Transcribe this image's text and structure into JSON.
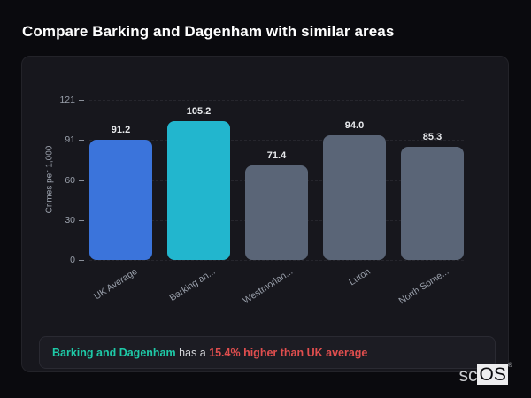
{
  "page": {
    "title": "Compare Barking and Dagenham with similar areas"
  },
  "chart_data": {
    "type": "bar",
    "categories": [
      "UK Average",
      "Barking an...",
      "Westmorlan...",
      "Luton",
      "North Some..."
    ],
    "values": [
      91.2,
      105.2,
      71.4,
      94.0,
      85.3
    ],
    "value_labels": [
      "91.2",
      "105.2",
      "71.4",
      "94.0",
      "85.3"
    ],
    "bar_colors": [
      "#3B74DB",
      "#22B6CE",
      "#5A6577",
      "#5A6577",
      "#5A6577"
    ],
    "title": "",
    "xlabel": "",
    "ylabel": "Crimes per 1,000",
    "yticks": [
      0,
      30,
      60,
      91,
      121
    ],
    "ytick_labels": [
      "0",
      "30",
      "60",
      "91",
      "121"
    ],
    "ylim": [
      0,
      121
    ],
    "grid": "horizontal-dashed",
    "legend": "none"
  },
  "note": {
    "highlight": "Barking and Dagenham",
    "middle": " has a ",
    "stat": "15.4% higher than UK average",
    "highlight_color": "#1EC9A7",
    "stat_color": "#E04E4E"
  },
  "watermark": {
    "prefix": "sc",
    "suffix": "OS",
    "reg": "®"
  }
}
